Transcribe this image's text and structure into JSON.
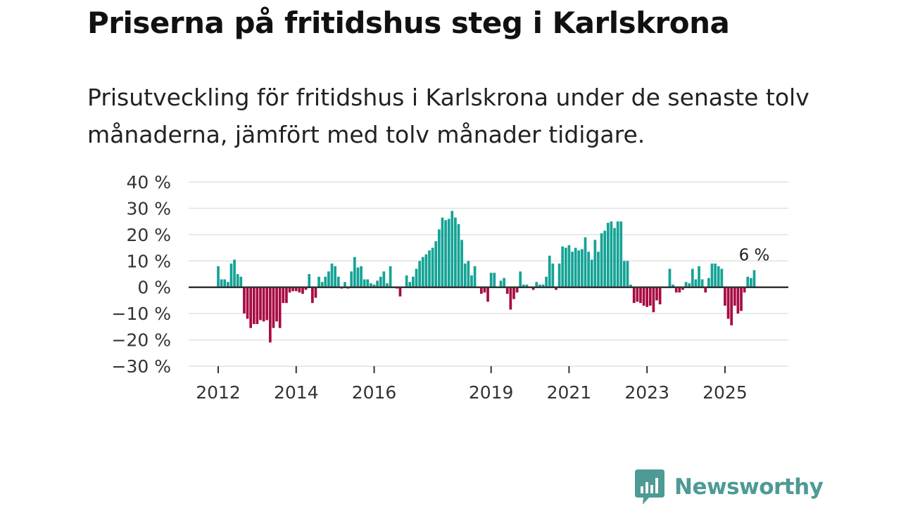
{
  "header": {
    "title": "Priserna på fritidshus steg i Karlskrona",
    "subtitle": "Prisutveckling för fritidshus i Karlskrona under de senaste tolv månaderna, jämfört med tolv månader tidigare."
  },
  "branding": {
    "name": "Newsworthy",
    "color": "#4e9a95"
  },
  "colors": {
    "positive": "#14a396",
    "negative": "#a80b44",
    "grid": "#e2e2e2",
    "zero_line": "#333333"
  },
  "chart_data": {
    "type": "bar",
    "title": "Priserna på fritidshus steg i Karlskrona",
    "subtitle": "Prisutveckling för fritidshus i Karlskrona under de senaste tolv månaderna, jämfört med tolv månader tidigare.",
    "xlabel": "",
    "ylabel": "",
    "unit": "%",
    "ylim": [
      -30,
      40
    ],
    "yticks": [
      40,
      30,
      20,
      10,
      0,
      -10,
      -20,
      -30
    ],
    "ytick_labels": [
      "40 %",
      "30 %",
      "20 %",
      "10 %",
      "0 %",
      "−10 %",
      "−20 %",
      "−30 %"
    ],
    "x_start": "2012-01",
    "x_ticks": [
      {
        "label": "2012",
        "index": 0
      },
      {
        "label": "2014",
        "index": 24
      },
      {
        "label": "2016",
        "index": 48
      },
      {
        "label": "2019",
        "index": 84
      },
      {
        "label": "2021",
        "index": 108
      },
      {
        "label": "2023",
        "index": 132
      },
      {
        "label": "2025",
        "index": 156
      }
    ],
    "last_value_label": "6 %",
    "values": [
      8,
      3,
      3,
      2,
      9,
      10.5,
      5,
      4,
      -10,
      -12,
      -15.5,
      -14,
      -14,
      -12.5,
      -13,
      -12.5,
      -21,
      -15.5,
      -13,
      -15.5,
      -6,
      -6,
      -2,
      -1.5,
      -1.5,
      -2,
      -2.5,
      -1,
      5,
      -6,
      -4,
      4,
      2,
      4,
      6,
      9,
      8,
      4,
      -0.5,
      2,
      -0.5,
      6,
      11.5,
      7.5,
      8,
      3,
      3,
      1.5,
      1,
      2.5,
      4,
      6,
      1.5,
      8,
      0,
      -0.5,
      -3.5,
      0,
      4.5,
      2,
      4,
      7,
      10,
      11.5,
      12.5,
      14,
      15,
      17.5,
      22,
      26.5,
      25.5,
      26,
      29,
      26.5,
      24,
      18,
      9,
      10,
      4.5,
      8,
      0,
      -2.5,
      -2,
      -5.5,
      5.5,
      5.5,
      0,
      2.5,
      3.5,
      -2.5,
      -8.5,
      -4.5,
      -2,
      6,
      1,
      1,
      0,
      -1,
      2,
      1,
      1,
      4,
      12,
      9,
      -1,
      9,
      15.5,
      15,
      16,
      13.5,
      15,
      14,
      14.5,
      19,
      13.5,
      10.5,
      18,
      13.5,
      20.5,
      21.5,
      24.5,
      25,
      22.5,
      25,
      25,
      10,
      10,
      1,
      -6,
      -5.5,
      -6,
      -7,
      -7.5,
      -7,
      -9.5,
      -5,
      -6.5,
      0,
      0,
      7,
      1,
      -2,
      -2,
      -1,
      2,
      1.5,
      7,
      3,
      8,
      3,
      -2,
      3.5,
      9,
      9,
      8,
      7,
      -7,
      -12,
      -14.5,
      -7,
      -10,
      -9,
      -2,
      4,
      3.5,
      6.5
    ]
  }
}
